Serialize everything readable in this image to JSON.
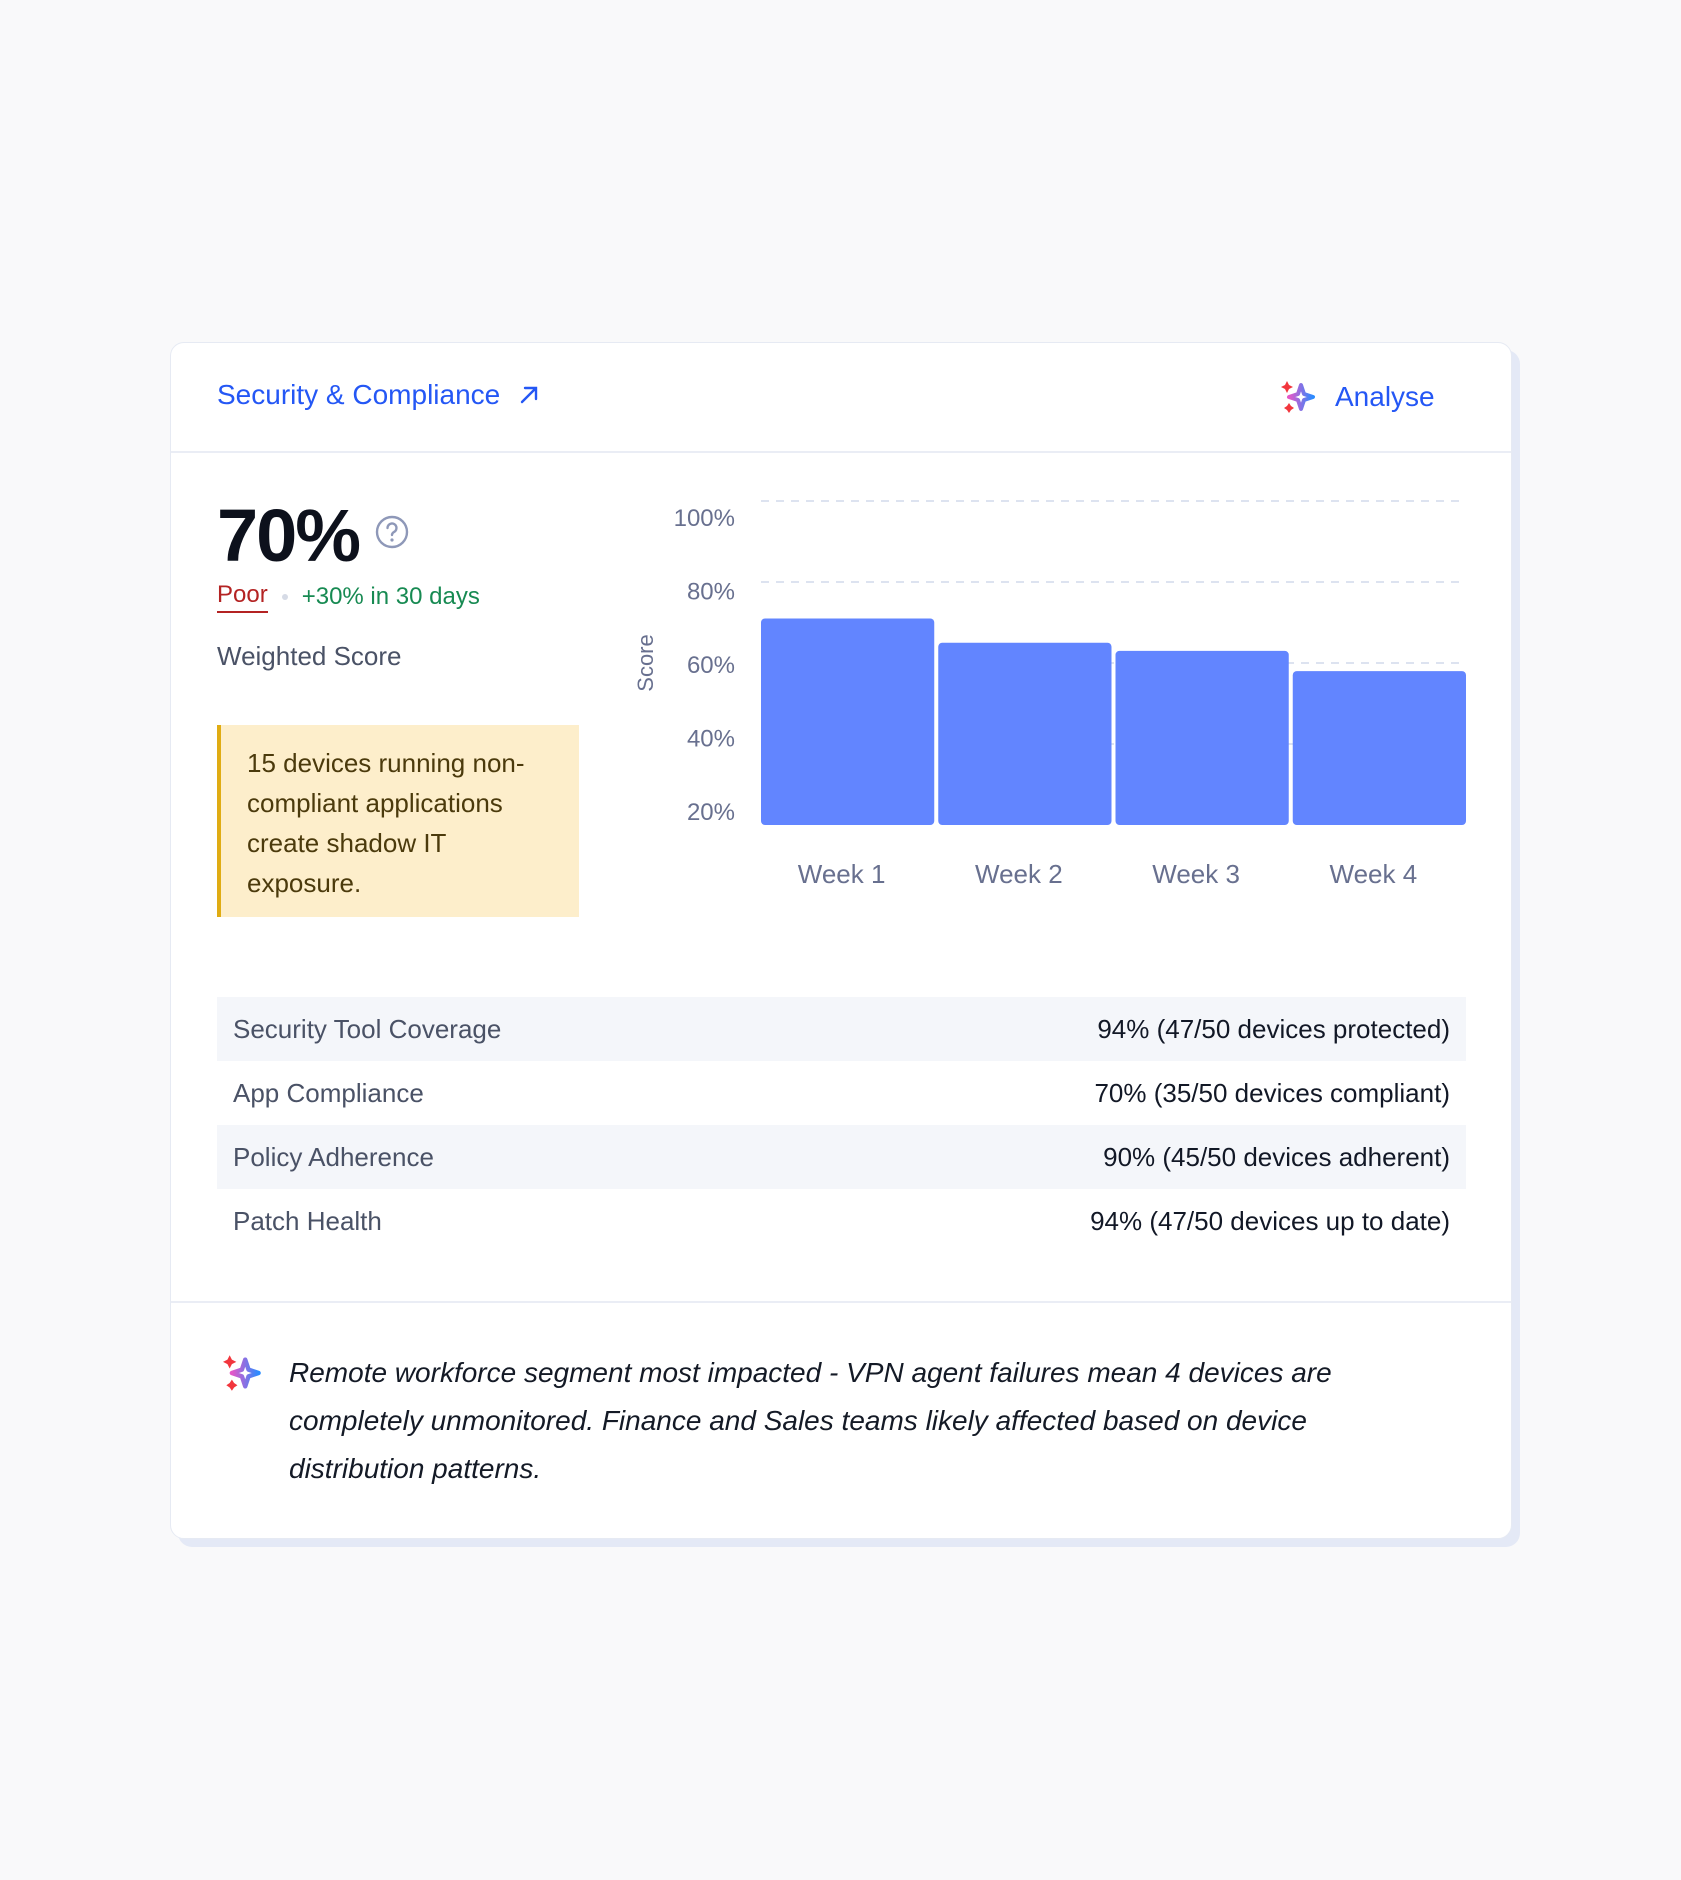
{
  "header": {
    "title": "Security & Compliance",
    "title_icon": "arrow-up-right-icon",
    "analyse_label": "Analyse",
    "analyse_icon": "sparkle-icon"
  },
  "score": {
    "value": "70%",
    "rating": "Poor",
    "trend": "+30% in 30 days",
    "label": "Weighted Score",
    "help_icon": "question-circle-icon"
  },
  "callout": {
    "text": "15 devices running non-compliant applications create shadow IT exposure."
  },
  "chart_data": {
    "type": "bar",
    "categories": [
      "Week 1",
      "Week 2",
      "Week 3",
      "Week 4"
    ],
    "values": [
      71,
      65,
      63,
      58
    ],
    "ylabel": "Score",
    "xlabel": "",
    "ylim": [
      20,
      100
    ],
    "yticks": [
      "100%",
      "80%",
      "60%",
      "40%",
      "20%"
    ],
    "grid": true,
    "color": "#6285ff"
  },
  "metrics": [
    {
      "label": "Security Tool Coverage",
      "value": "94% (47/50 devices protected)"
    },
    {
      "label": "App Compliance",
      "value": "70% (35/50 devices compliant)"
    },
    {
      "label": "Policy Adherence",
      "value": "90% (45/50 devices adherent)"
    },
    {
      "label": "Patch Health",
      "value": "94% (47/50 devices up to date)"
    }
  ],
  "insight": {
    "text": "Remote workforce segment most impacted - VPN agent failures mean 4 devices are completely unmonitored. Finance and Sales teams likely affected based on device distribution patterns.",
    "icon": "sparkle-icon"
  },
  "colors": {
    "accent": "#2457f5",
    "poor": "#b42323",
    "trend": "#178a52",
    "bar": "#6285ff",
    "callout_bg": "#fdeecb",
    "callout_border": "#e0ac13"
  }
}
